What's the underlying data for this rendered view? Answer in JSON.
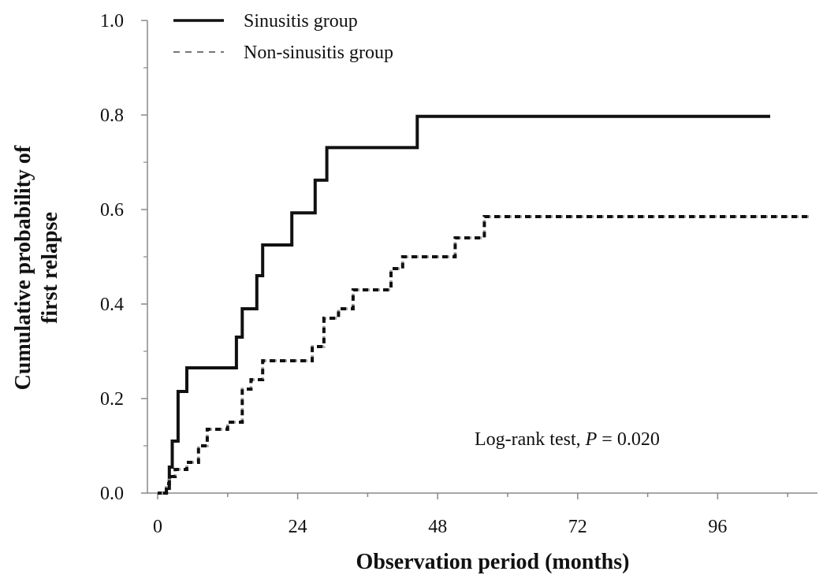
{
  "chart_data": {
    "type": "line",
    "step": true,
    "xlabel": "Observation period (months)",
    "ylabel_line1": "Cumulative probability of",
    "ylabel_line2": "first relapse",
    "xlim": [
      0,
      112
    ],
    "ylim": [
      0,
      1.0
    ],
    "x_ticks": [
      "0",
      "24",
      "48",
      "72",
      "96"
    ],
    "y_ticks": [
      "0.0",
      "0.2",
      "0.4",
      "0.6",
      "0.8",
      "1.0"
    ],
    "legend_position": "top-left",
    "annotation": {
      "prefix": "Log-rank test, ",
      "italic": "P",
      "suffix": " = 0.020"
    },
    "series": [
      {
        "name": "Sinusitis group",
        "style": "solid",
        "color": "#111111",
        "points": [
          [
            0,
            0
          ],
          [
            1.5,
            0
          ],
          [
            1.5,
            0.01
          ],
          [
            2,
            0.01
          ],
          [
            2,
            0.055
          ],
          [
            2.5,
            0.055
          ],
          [
            2.5,
            0.11
          ],
          [
            3.5,
            0.11
          ],
          [
            3.5,
            0.215
          ],
          [
            5,
            0.215
          ],
          [
            5,
            0.265
          ],
          [
            13.5,
            0.265
          ],
          [
            13.5,
            0.33
          ],
          [
            14.5,
            0.33
          ],
          [
            14.5,
            0.39
          ],
          [
            17,
            0.39
          ],
          [
            17,
            0.46
          ],
          [
            18,
            0.46
          ],
          [
            18,
            0.525
          ],
          [
            23,
            0.525
          ],
          [
            23,
            0.593
          ],
          [
            27,
            0.593
          ],
          [
            27,
            0.662
          ],
          [
            29,
            0.662
          ],
          [
            29,
            0.731
          ],
          [
            44.5,
            0.731
          ],
          [
            44.5,
            0.797
          ],
          [
            105,
            0.797
          ]
        ]
      },
      {
        "name": "Non-sinusitis group",
        "style": "dashed",
        "color": "#111111",
        "points": [
          [
            0,
            0
          ],
          [
            1.5,
            0
          ],
          [
            1.5,
            0.02
          ],
          [
            2,
            0.02
          ],
          [
            2,
            0.035
          ],
          [
            3,
            0.035
          ],
          [
            3,
            0.05
          ],
          [
            5,
            0.05
          ],
          [
            5,
            0.065
          ],
          [
            7,
            0.065
          ],
          [
            7,
            0.1
          ],
          [
            8.5,
            0.1
          ],
          [
            8.5,
            0.135
          ],
          [
            12,
            0.135
          ],
          [
            12,
            0.15
          ],
          [
            14.5,
            0.15
          ],
          [
            14.5,
            0.22
          ],
          [
            16,
            0.22
          ],
          [
            16,
            0.24
          ],
          [
            18,
            0.24
          ],
          [
            18,
            0.28
          ],
          [
            26.5,
            0.28
          ],
          [
            26.5,
            0.31
          ],
          [
            28.5,
            0.31
          ],
          [
            28.5,
            0.37
          ],
          [
            31,
            0.37
          ],
          [
            31,
            0.39
          ],
          [
            33.5,
            0.39
          ],
          [
            33.5,
            0.43
          ],
          [
            40,
            0.43
          ],
          [
            40,
            0.475
          ],
          [
            42,
            0.475
          ],
          [
            42,
            0.5
          ],
          [
            51,
            0.5
          ],
          [
            51,
            0.54
          ],
          [
            56,
            0.54
          ],
          [
            56,
            0.585
          ],
          [
            112,
            0.585
          ]
        ]
      }
    ]
  }
}
